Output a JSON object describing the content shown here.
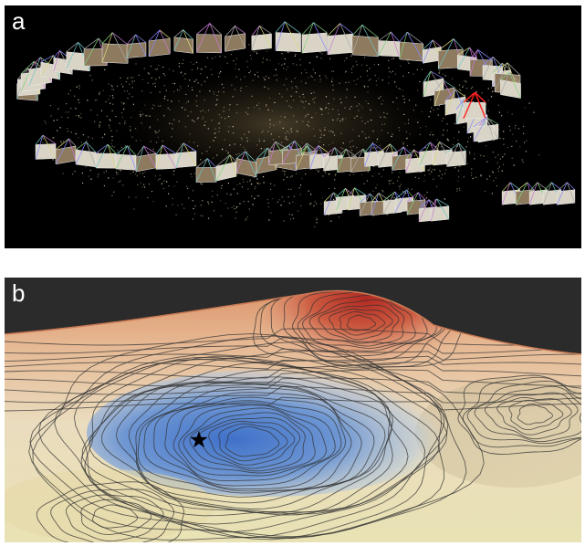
{
  "panels": [
    {
      "label": "a"
    },
    {
      "label": "b"
    }
  ],
  "colors": {
    "background_a": "#000000",
    "points": "#d8cdb0",
    "terrain_high": "#c0392b",
    "terrain_low": "#3a6cc6",
    "terrain_mid": "#e8dcc0",
    "contour": "#3a3a3a",
    "star": "#000000"
  },
  "icons": {
    "marker": "star-icon"
  }
}
